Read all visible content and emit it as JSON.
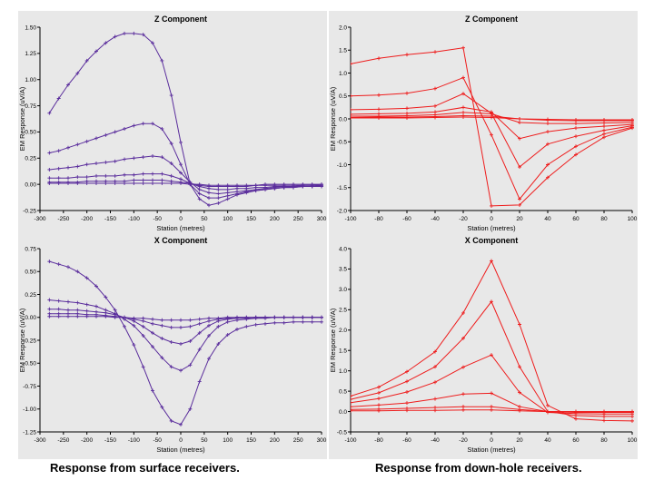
{
  "captions": {
    "left": "Response from surface receivers.",
    "right": "Response from down-hole receivers."
  },
  "chart_data": [
    {
      "id": "surface-z",
      "type": "line",
      "title": "Z Component",
      "xlabel": "Station (metres)",
      "ylabel": "EM Response (uV/A)",
      "xlim": [
        -300,
        300
      ],
      "ylim": [
        -0.25,
        1.5
      ],
      "xticks": [
        "-300",
        "-250",
        "-200",
        "-150",
        "-100",
        "-50",
        "0",
        "50",
        "100",
        "150",
        "200",
        "250",
        "300"
      ],
      "yticks": [
        "-0.25",
        "0.00",
        "0.25",
        "0.50",
        "0.75",
        "1.00",
        "1.25",
        "1.50"
      ],
      "color": "#5a2d9c",
      "grid": false,
      "x": [
        -280,
        -260,
        -240,
        -220,
        -200,
        -180,
        -160,
        -140,
        -120,
        -100,
        -80,
        -60,
        -40,
        -20,
        0,
        20,
        40,
        60,
        80,
        100,
        120,
        140,
        160,
        180,
        200,
        220,
        240,
        260,
        280,
        300
      ],
      "series": [
        {
          "values": [
            0.68,
            0.82,
            0.95,
            1.06,
            1.18,
            1.27,
            1.35,
            1.41,
            1.44,
            1.44,
            1.43,
            1.35,
            1.18,
            0.85,
            0.4,
            0.0,
            -0.14,
            -0.2,
            -0.18,
            -0.14,
            -0.1,
            -0.08,
            -0.06,
            -0.05,
            -0.04,
            -0.03,
            -0.03,
            -0.02,
            -0.02,
            -0.02
          ]
        },
        {
          "values": [
            0.3,
            0.32,
            0.35,
            0.38,
            0.41,
            0.44,
            0.47,
            0.5,
            0.53,
            0.56,
            0.58,
            0.58,
            0.53,
            0.39,
            0.19,
            0.0,
            -0.09,
            -0.13,
            -0.13,
            -0.11,
            -0.09,
            -0.07,
            -0.06,
            -0.05,
            -0.04,
            -0.03,
            -0.03,
            -0.02,
            -0.02,
            -0.02
          ]
        },
        {
          "values": [
            0.14,
            0.15,
            0.16,
            0.17,
            0.19,
            0.2,
            0.21,
            0.22,
            0.24,
            0.25,
            0.26,
            0.27,
            0.26,
            0.2,
            0.11,
            0.02,
            -0.05,
            -0.08,
            -0.09,
            -0.08,
            -0.07,
            -0.06,
            -0.05,
            -0.04,
            -0.03,
            -0.03,
            -0.02,
            -0.02,
            -0.02,
            -0.01
          ]
        },
        {
          "values": [
            0.06,
            0.06,
            0.06,
            0.07,
            0.07,
            0.08,
            0.08,
            0.08,
            0.09,
            0.09,
            0.1,
            0.1,
            0.1,
            0.08,
            0.05,
            0.01,
            -0.02,
            -0.04,
            -0.05,
            -0.05,
            -0.04,
            -0.04,
            -0.03,
            -0.03,
            -0.02,
            -0.02,
            -0.02,
            -0.01,
            -0.01,
            -0.01
          ]
        },
        {
          "values": [
            0.02,
            0.02,
            0.02,
            0.02,
            0.03,
            0.03,
            0.03,
            0.03,
            0.03,
            0.04,
            0.04,
            0.04,
            0.04,
            0.03,
            0.02,
            0.01,
            -0.01,
            -0.02,
            -0.02,
            -0.02,
            -0.02,
            -0.02,
            -0.01,
            -0.01,
            -0.01,
            -0.01,
            -0.01,
            -0.01,
            -0.01,
            0.0
          ]
        },
        {
          "values": [
            0.01,
            0.01,
            0.01,
            0.01,
            0.01,
            0.01,
            0.01,
            0.01,
            0.01,
            0.01,
            0.01,
            0.01,
            0.01,
            0.01,
            0.01,
            0.0,
            0.0,
            -0.01,
            -0.01,
            -0.01,
            -0.01,
            -0.01,
            -0.01,
            0.0,
            0.0,
            0.0,
            0.0,
            0.0,
            0.0,
            0.0
          ]
        }
      ]
    },
    {
      "id": "downhole-z",
      "type": "line",
      "title": "Z Component",
      "xlabel": "Station (metres)",
      "ylabel": "EM Response (uV/A)",
      "xlim": [
        -100,
        100
      ],
      "ylim": [
        -2.0,
        2.0
      ],
      "xticks": [
        "-100",
        "-80",
        "-60",
        "-40",
        "-20",
        "0",
        "20",
        "40",
        "60",
        "80",
        "100"
      ],
      "yticks": [
        "-2.0",
        "-1.5",
        "-1.0",
        "-0.5",
        "0.0",
        "0.5",
        "1.0",
        "1.5",
        "2.0"
      ],
      "color": "#ee1c1c",
      "grid": false,
      "x": [
        -100,
        -80,
        -60,
        -40,
        -20,
        0,
        20,
        40,
        60,
        80,
        100
      ],
      "series": [
        {
          "values": [
            1.2,
            1.32,
            1.4,
            1.46,
            1.55,
            -1.9,
            -1.88,
            -1.28,
            -0.78,
            -0.4,
            -0.2
          ]
        },
        {
          "values": [
            0.5,
            0.52,
            0.56,
            0.66,
            0.9,
            -0.35,
            -1.75,
            -1.0,
            -0.6,
            -0.33,
            -0.18
          ]
        },
        {
          "values": [
            0.2,
            0.21,
            0.23,
            0.28,
            0.55,
            0.12,
            -1.05,
            -0.55,
            -0.38,
            -0.25,
            -0.15
          ]
        },
        {
          "values": [
            0.1,
            0.11,
            0.12,
            0.15,
            0.25,
            0.15,
            -0.43,
            -0.28,
            -0.2,
            -0.16,
            -0.12
          ]
        },
        {
          "values": [
            0.06,
            0.06,
            0.07,
            0.09,
            0.14,
            0.11,
            -0.08,
            -0.1,
            -0.1,
            -0.09,
            -0.08
          ]
        },
        {
          "values": [
            0.03,
            0.04,
            0.04,
            0.05,
            0.07,
            0.06,
            0.0,
            -0.03,
            -0.04,
            -0.04,
            -0.04
          ]
        },
        {
          "values": [
            0.02,
            0.02,
            0.02,
            0.03,
            0.04,
            0.03,
            0.0,
            -0.01,
            -0.02,
            -0.02,
            -0.02
          ]
        }
      ]
    },
    {
      "id": "surface-x",
      "type": "line",
      "title": "X Component",
      "xlabel": "Station (metres)",
      "ylabel": "EM Response (uV/A)",
      "xlim": [
        -300,
        300
      ],
      "ylim": [
        -1.25,
        0.75
      ],
      "xticks": [
        "-300",
        "-250",
        "-200",
        "-150",
        "-100",
        "-50",
        "0",
        "50",
        "100",
        "150",
        "200",
        "250",
        "300"
      ],
      "yticks": [
        "-1.25",
        "-1.00",
        "-0.75",
        "-0.50",
        "-0.25",
        "0.00",
        "0.25",
        "0.50",
        "0.75"
      ],
      "color": "#5a2d9c",
      "grid": false,
      "x": [
        -280,
        -260,
        -240,
        -220,
        -200,
        -180,
        -160,
        -140,
        -120,
        -100,
        -80,
        -60,
        -40,
        -20,
        0,
        20,
        40,
        60,
        80,
        100,
        120,
        140,
        160,
        180,
        200,
        220,
        240,
        260,
        280,
        300
      ],
      "series": [
        {
          "values": [
            0.61,
            0.58,
            0.55,
            0.5,
            0.43,
            0.34,
            0.22,
            0.08,
            -0.1,
            -0.3,
            -0.54,
            -0.8,
            -0.98,
            -1.13,
            -1.17,
            -1.0,
            -0.7,
            -0.45,
            -0.29,
            -0.19,
            -0.13,
            -0.1,
            -0.08,
            -0.07,
            -0.06,
            -0.06,
            -0.05,
            -0.05,
            -0.05,
            -0.05
          ]
        },
        {
          "values": [
            0.19,
            0.18,
            0.17,
            0.16,
            0.14,
            0.12,
            0.08,
            0.04,
            -0.02,
            -0.09,
            -0.2,
            -0.32,
            -0.44,
            -0.54,
            -0.58,
            -0.52,
            -0.35,
            -0.2,
            -0.1,
            -0.05,
            -0.03,
            -0.02,
            -0.01,
            -0.01,
            0.0,
            0.0,
            0.0,
            0.0,
            0.0,
            0.0
          ]
        },
        {
          "values": [
            0.09,
            0.09,
            0.08,
            0.08,
            0.07,
            0.06,
            0.05,
            0.03,
            0.0,
            -0.04,
            -0.1,
            -0.17,
            -0.23,
            -0.27,
            -0.29,
            -0.26,
            -0.17,
            -0.09,
            -0.04,
            -0.02,
            -0.01,
            -0.01,
            0.0,
            0.0,
            0.0,
            0.0,
            0.0,
            0.0,
            0.0,
            0.0
          ]
        },
        {
          "values": [
            0.04,
            0.04,
            0.04,
            0.04,
            0.03,
            0.03,
            0.02,
            0.01,
            0.0,
            -0.02,
            -0.04,
            -0.07,
            -0.09,
            -0.11,
            -0.11,
            -0.1,
            -0.07,
            -0.04,
            -0.02,
            -0.01,
            0.0,
            0.0,
            0.0,
            0.0,
            0.0,
            0.0,
            0.0,
            0.0,
            0.0,
            0.0
          ]
        },
        {
          "values": [
            0.01,
            0.01,
            0.01,
            0.01,
            0.01,
            0.01,
            0.01,
            0.0,
            0.0,
            -0.01,
            -0.01,
            -0.02,
            -0.03,
            -0.03,
            -0.03,
            -0.03,
            -0.02,
            -0.01,
            -0.01,
            0.0,
            0.0,
            0.0,
            0.0,
            0.0,
            0.0,
            0.0,
            0.0,
            0.0,
            0.0,
            0.0
          ]
        }
      ]
    },
    {
      "id": "downhole-x",
      "type": "line",
      "title": "X Component",
      "xlabel": "Station (metres)",
      "ylabel": "EM Response (uV/A)",
      "xlim": [
        -100,
        100
      ],
      "ylim": [
        -0.5,
        4.0
      ],
      "xticks": [
        "-100",
        "-80",
        "-60",
        "-40",
        "-20",
        "0",
        "20",
        "40",
        "60",
        "80",
        "100"
      ],
      "yticks": [
        "-0.5",
        "0.0",
        "0.5",
        "1.0",
        "1.5",
        "2.0",
        "2.5",
        "3.0",
        "3.5",
        "4.0"
      ],
      "color": "#ee1c1c",
      "grid": false,
      "x": [
        -100,
        -80,
        -60,
        -40,
        -20,
        0,
        20,
        40,
        60,
        80,
        100
      ],
      "series": [
        {
          "values": [
            0.38,
            0.6,
            0.98,
            1.47,
            2.42,
            3.7,
            2.14,
            0.15,
            -0.18,
            -0.22,
            -0.23
          ]
        },
        {
          "values": [
            0.3,
            0.46,
            0.74,
            1.1,
            1.8,
            2.7,
            1.1,
            0.0,
            -0.1,
            -0.12,
            -0.12
          ]
        },
        {
          "values": [
            0.22,
            0.32,
            0.48,
            0.72,
            1.09,
            1.39,
            0.47,
            -0.02,
            -0.05,
            -0.06,
            -0.06
          ]
        },
        {
          "values": [
            0.12,
            0.16,
            0.21,
            0.31,
            0.43,
            0.45,
            0.12,
            0.0,
            -0.02,
            -0.02,
            -0.02
          ]
        },
        {
          "values": [
            0.05,
            0.06,
            0.08,
            0.1,
            0.12,
            0.12,
            0.05,
            0.0,
            0.0,
            0.0,
            0.0
          ]
        },
        {
          "values": [
            0.02,
            0.02,
            0.03,
            0.03,
            0.04,
            0.04,
            0.02,
            0.0,
            0.0,
            0.0,
            0.0
          ]
        }
      ]
    }
  ]
}
